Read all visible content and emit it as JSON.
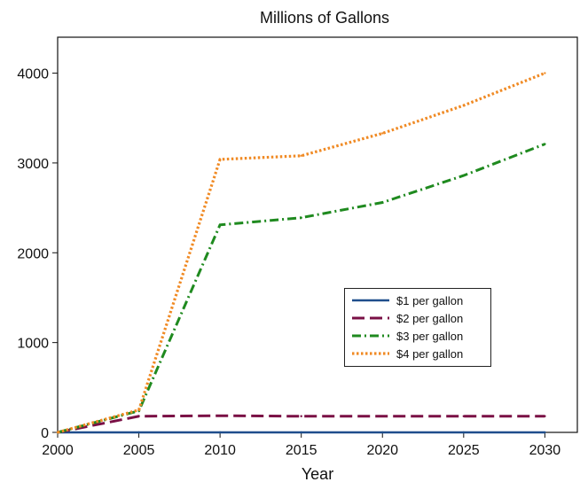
{
  "chart_data": {
    "type": "line",
    "title": "Millions of Gallons",
    "xlabel": "Year",
    "ylabel": "",
    "xlim": [
      2000,
      2032
    ],
    "ylim": [
      0,
      4400
    ],
    "x_ticks": [
      2000,
      2005,
      2010,
      2015,
      2020,
      2025,
      2030
    ],
    "y_ticks": [
      0,
      1000,
      2000,
      3000,
      4000
    ],
    "x": [
      2000,
      2005,
      2010,
      2015,
      2020,
      2025,
      2030
    ],
    "legend_position": "center-right",
    "series": [
      {
        "name": "$1 per gallon",
        "color": "#1f4e8c",
        "dash": "solid",
        "values": [
          0,
          0,
          0,
          0,
          0,
          0,
          0
        ]
      },
      {
        "name": "$2 per gallon",
        "color": "#7a1045",
        "dash": "long-dash",
        "values": [
          0,
          180,
          185,
          180,
          180,
          180,
          180
        ]
      },
      {
        "name": "$3 per gallon",
        "color": "#1f8a1f",
        "dash": "dash-dot",
        "values": [
          0,
          240,
          2310,
          2390,
          2560,
          2860,
          3210
        ]
      },
      {
        "name": "$4 per gallon",
        "color": "#f08a24",
        "dash": "dotted",
        "values": [
          0,
          250,
          3040,
          3080,
          3330,
          3640,
          4000
        ]
      }
    ]
  }
}
